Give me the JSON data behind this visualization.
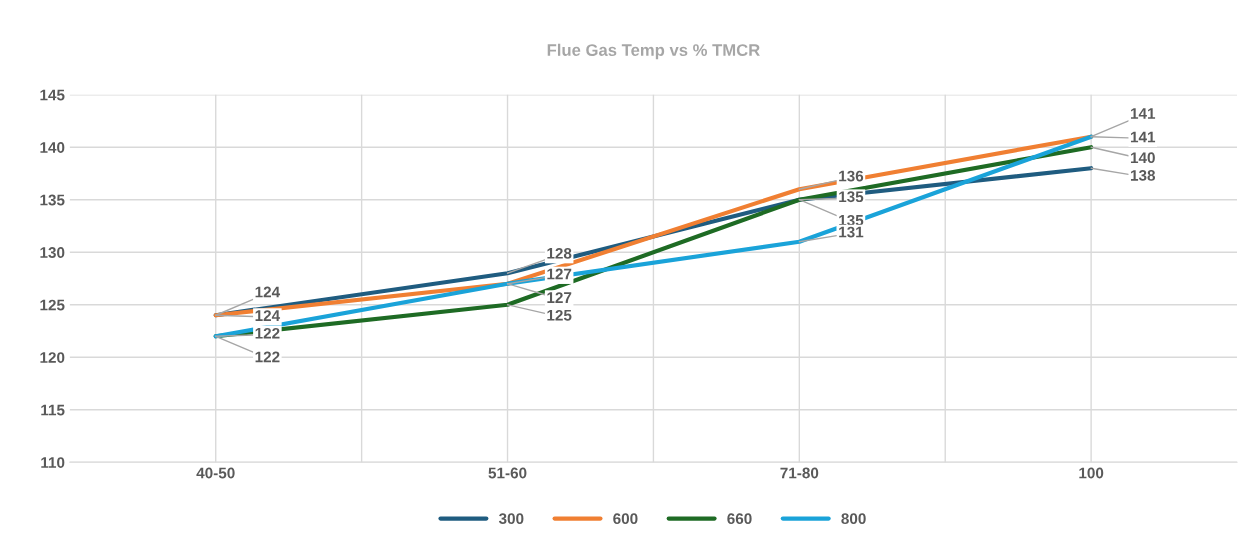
{
  "chart_data": {
    "type": "line",
    "title": "Flue Gas Temp vs % TMCR",
    "categories": [
      "40-50",
      "51-60",
      "71-80",
      "100"
    ],
    "series": [
      {
        "name": "300",
        "color": "#1f5c80",
        "values": [
          124,
          128,
          135,
          138
        ]
      },
      {
        "name": "600",
        "color": "#f07f32",
        "values": [
          124,
          127,
          136,
          141
        ]
      },
      {
        "name": "660",
        "color": "#1e6b24",
        "values": [
          122,
          125,
          135,
          140
        ]
      },
      {
        "name": "800",
        "color": "#1aa3d9",
        "values": [
          122,
          127,
          131,
          141
        ]
      }
    ],
    "ylim": [
      110,
      145
    ],
    "yticks": [
      110,
      115,
      120,
      125,
      130,
      135,
      140,
      145
    ],
    "grid": true,
    "legend": "bottom",
    "data_labels": true,
    "marker": "none",
    "line_style": "solid"
  }
}
